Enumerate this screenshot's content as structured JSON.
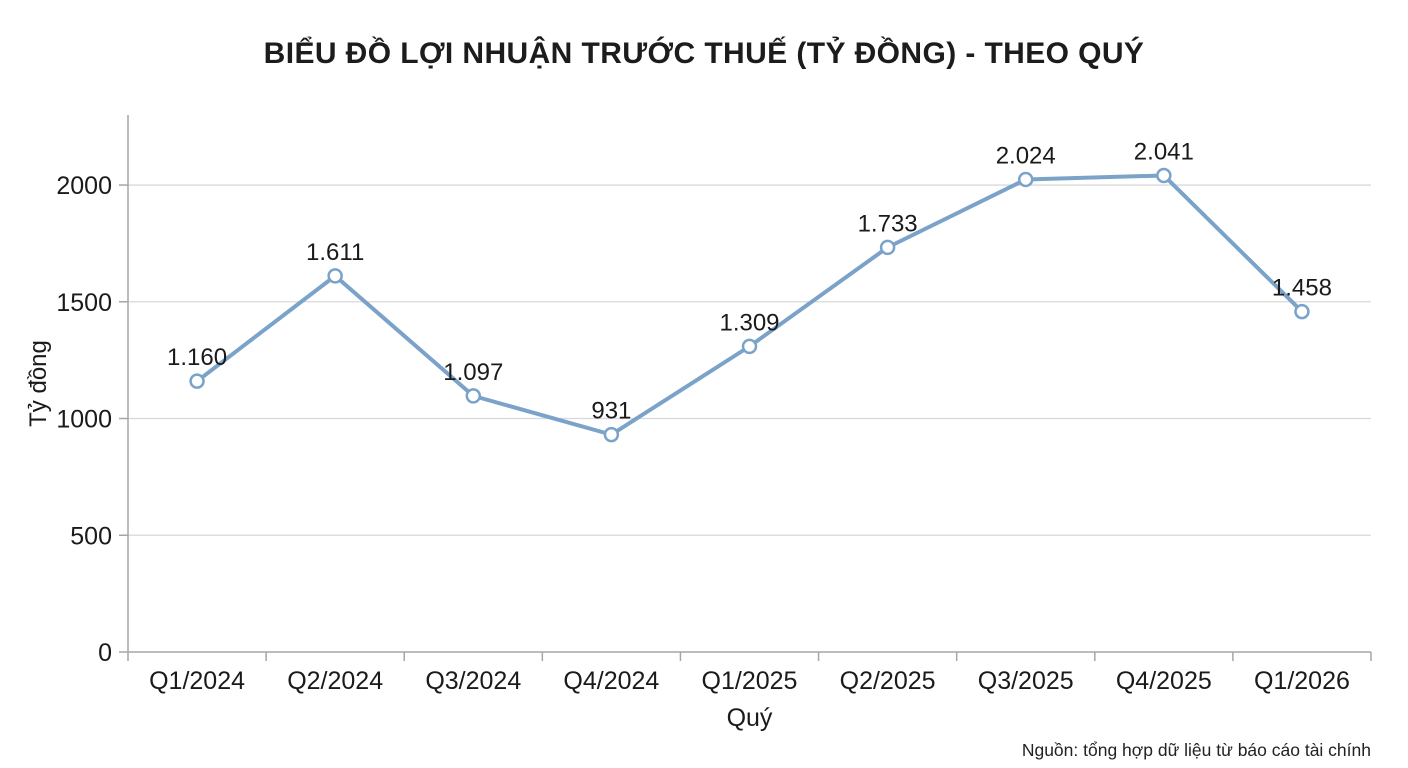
{
  "page": {
    "title": "BIỂU ĐỒ LỢI NHUẬN TRƯỚC THUẾ (TỶ ĐỒNG) - THEO QUÝ",
    "source_note": "Nguồn: tổng hợp dữ liệu từ báo cáo tài chính"
  },
  "chart_data": {
    "type": "line",
    "title": "BIỂU ĐỒ LỢI NHUẬN TRƯỚC THUẾ (TỶ ĐỒNG) - THEO QUÝ",
    "categories": [
      "Q1/2024",
      "Q2/2024",
      "Q3/2024",
      "Q4/2024",
      "Q1/2025",
      "Q2/2025",
      "Q3/2025",
      "Q4/2025",
      "Q1/2026"
    ],
    "values": [
      1160,
      1611,
      1097,
      931,
      1309,
      1733,
      2024,
      2041,
      1458
    ],
    "point_labels": [
      "1.160",
      "1.611",
      "1.097",
      "931",
      "1.309",
      "1.733",
      "2.024",
      "2.041",
      "1.458"
    ],
    "xlabel": "Quý",
    "ylabel": "Tỷ đồng",
    "ylim": [
      0,
      2300
    ],
    "yticks": [
      0,
      500,
      1000,
      1500,
      2000
    ],
    "grid": "horizontal-only",
    "legend": "none",
    "source_note": "Nguồn: tổng hợp dữ liệu từ báo cáo tài chính",
    "style": {
      "line_color": "#7ba3c9",
      "marker": "open-circle",
      "marker_fill": "#ffffff",
      "grid_color": "#d9d9d9",
      "axis_color": "#a6a6a6",
      "text_color": "#1a1a1a",
      "background": "#ffffff"
    }
  }
}
